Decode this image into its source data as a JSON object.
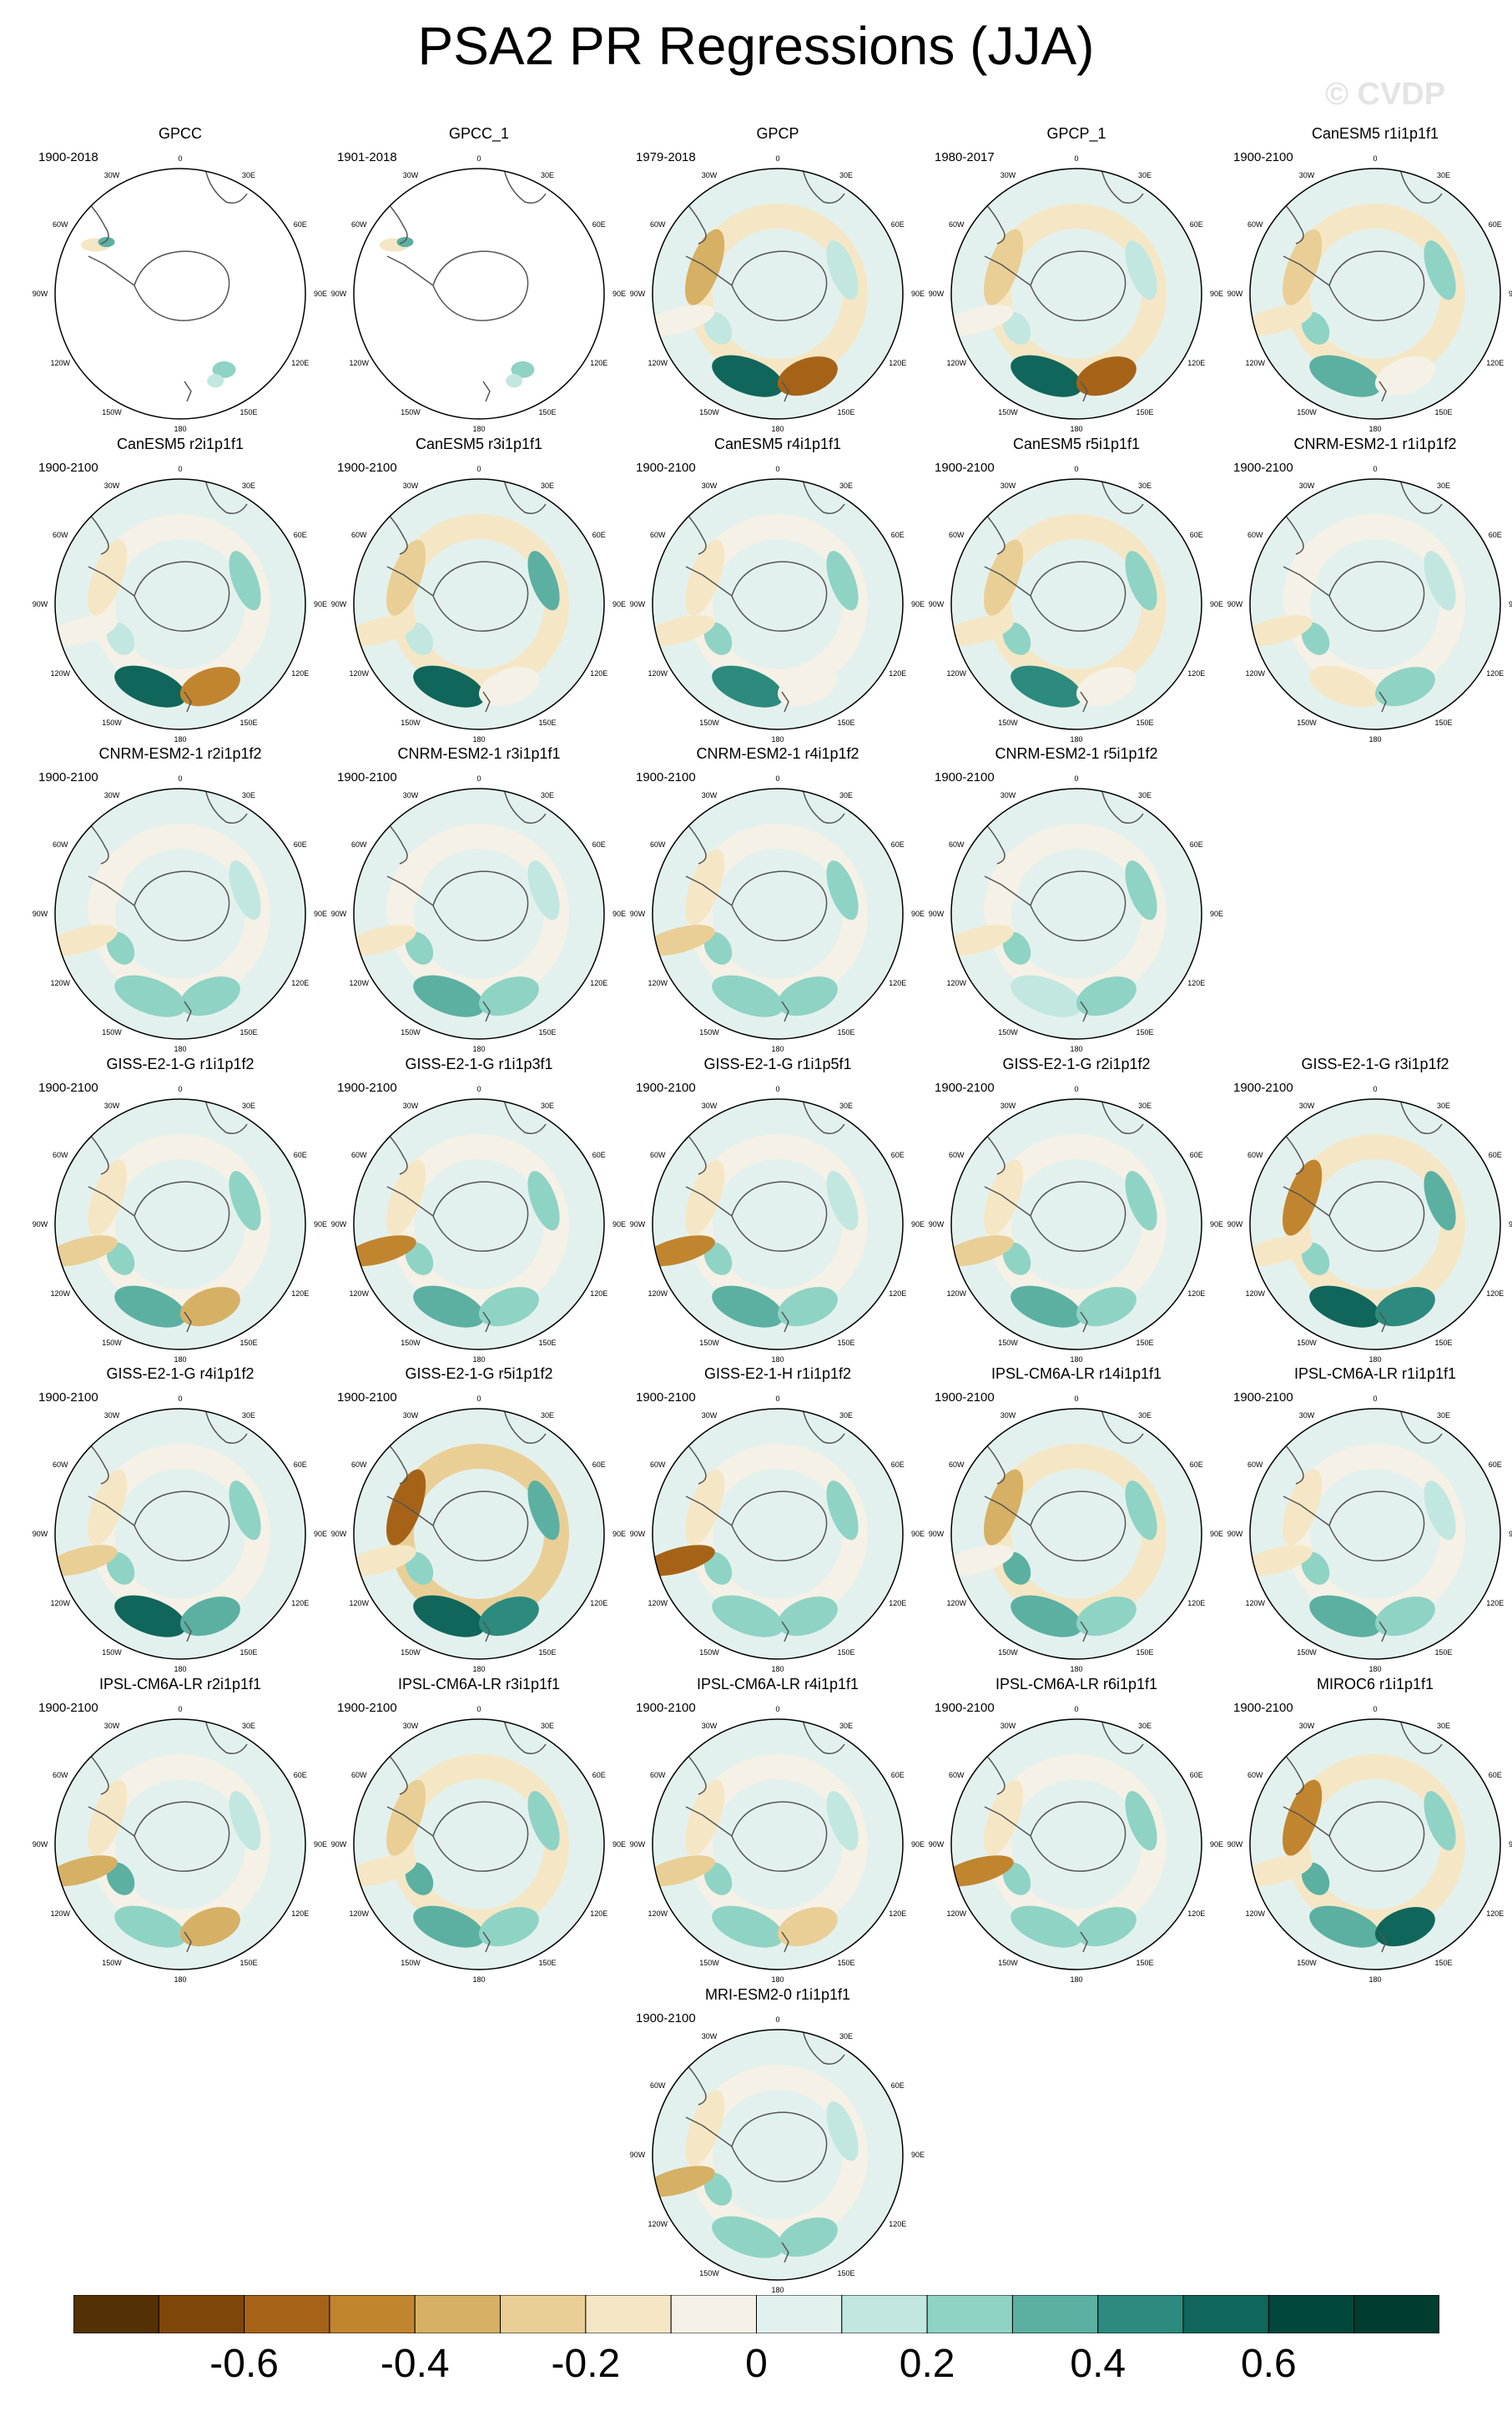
{
  "title": "PSA2 PR Regressions (JJA)",
  "watermark": "© CVDP",
  "longitude_labels": {
    "top": "0",
    "left_upper": "60W",
    "left_mid": "90W",
    "left_lower": "120W",
    "bottom_left": "150W",
    "bottom": "180",
    "bottom_right": "150E",
    "right_lower": "120E",
    "right_mid": "90E",
    "right_upper": "60E",
    "top_right": "30E",
    "top_left": "30W"
  },
  "panels": [
    {
      "title": "GPCC",
      "years": "1900-2018",
      "coverage": "land",
      "pattern": [
        0,
        0,
        0,
        0,
        0,
        0
      ]
    },
    {
      "title": "GPCC_1",
      "years": "1901-2018",
      "coverage": "land",
      "pattern": [
        0,
        0,
        0,
        0,
        0,
        0
      ]
    },
    {
      "title": "GPCP",
      "years": "1979-2018",
      "coverage": "full",
      "pattern": [
        -0.4,
        0.1,
        0.5,
        -0.1,
        0.1,
        -0.6
      ]
    },
    {
      "title": "GPCP_1",
      "years": "1980-2017",
      "coverage": "full",
      "pattern": [
        -0.3,
        0.1,
        0.5,
        -0.1,
        0.1,
        -0.6
      ]
    },
    {
      "title": "CanESM5 r1i1p1f1",
      "years": "1900-2100",
      "coverage": "full",
      "pattern": [
        -0.3,
        0.2,
        0.3,
        -0.2,
        0.2,
        -0.1
      ]
    },
    {
      "title": "CanESM5 r2i1p1f1",
      "years": "1900-2100",
      "coverage": "full",
      "pattern": [
        -0.2,
        0.1,
        0.5,
        -0.1,
        0.2,
        -0.5
      ]
    },
    {
      "title": "CanESM5 r3i1p1f1",
      "years": "1900-2100",
      "coverage": "full",
      "pattern": [
        -0.3,
        0.1,
        0.5,
        -0.2,
        0.3,
        -0.1
      ]
    },
    {
      "title": "CanESM5 r4i1p1f1",
      "years": "1900-2100",
      "coverage": "full",
      "pattern": [
        -0.2,
        0.2,
        0.4,
        -0.2,
        0.2,
        -0.1
      ]
    },
    {
      "title": "CanESM5 r5i1p1f1",
      "years": "1900-2100",
      "coverage": "full",
      "pattern": [
        -0.3,
        0.2,
        0.4,
        -0.2,
        0.2,
        -0.1
      ]
    },
    {
      "title": "CNRM-ESM2-1 r1i1p1f2",
      "years": "1900-2100",
      "coverage": "full",
      "pattern": [
        -0.1,
        0.2,
        -0.2,
        -0.2,
        0.1,
        0.2
      ]
    },
    {
      "title": "CNRM-ESM2-1 r2i1p1f2",
      "years": "1900-2100",
      "coverage": "full",
      "pattern": [
        -0.1,
        0.2,
        0.2,
        -0.2,
        0.1,
        0.2
      ]
    },
    {
      "title": "CNRM-ESM2-1 r3i1p1f1",
      "years": "1900-2100",
      "coverage": "full",
      "pattern": [
        -0.1,
        0.2,
        0.3,
        -0.2,
        0.1,
        0.2
      ]
    },
    {
      "title": "CNRM-ESM2-1 r4i1p1f2",
      "years": "1900-2100",
      "coverage": "full",
      "pattern": [
        -0.2,
        0.2,
        0.2,
        -0.3,
        0.2,
        0.2
      ]
    },
    {
      "title": "CNRM-ESM2-1 r5i1p1f2",
      "years": "1900-2100",
      "coverage": "full",
      "pattern": [
        -0.1,
        0.2,
        0.1,
        -0.2,
        0.2,
        0.2
      ]
    },
    {
      "title": "GISS-E2-1-G r1i1p1f2",
      "years": "1900-2100",
      "coverage": "full",
      "pattern": [
        -0.2,
        0.2,
        0.3,
        -0.3,
        0.2,
        -0.4
      ]
    },
    {
      "title": "GISS-E2-1-G r1i1p3f1",
      "years": "1900-2100",
      "coverage": "full",
      "pattern": [
        -0.2,
        0.2,
        0.3,
        -0.5,
        0.2,
        0.2
      ]
    },
    {
      "title": "GISS-E2-1-G r1i1p5f1",
      "years": "1900-2100",
      "coverage": "full",
      "pattern": [
        -0.2,
        0.2,
        0.3,
        -0.5,
        0.1,
        0.2
      ]
    },
    {
      "title": "GISS-E2-1-G r2i1p1f2",
      "years": "1900-2100",
      "coverage": "full",
      "pattern": [
        -0.2,
        0.2,
        0.3,
        -0.3,
        0.2,
        0.2
      ]
    },
    {
      "title": "GISS-E2-1-G r3i1p1f2",
      "years": "1900-2100",
      "coverage": "full",
      "pattern": [
        -0.5,
        0.2,
        0.5,
        -0.2,
        0.3,
        0.4
      ]
    },
    {
      "title": "GISS-E2-1-G r4i1p1f2",
      "years": "1900-2100",
      "coverage": "full",
      "pattern": [
        -0.2,
        0.2,
        0.6,
        -0.3,
        0.2,
        0.3
      ]
    },
    {
      "title": "GISS-E2-1-G r5i1p1f2",
      "years": "1900-2100",
      "coverage": "full",
      "pattern": [
        -0.6,
        0.2,
        0.5,
        -0.2,
        0.3,
        0.4
      ]
    },
    {
      "title": "GISS-E2-1-H r1i1p1f2",
      "years": "1900-2100",
      "coverage": "full",
      "pattern": [
        -0.2,
        0.2,
        0.2,
        -0.6,
        0.2,
        0.2
      ]
    },
    {
      "title": "IPSL-CM6A-LR r14i1p1f1",
      "years": "1900-2100",
      "coverage": "full",
      "pattern": [
        -0.4,
        0.3,
        0.3,
        -0.1,
        0.2,
        0.2
      ]
    },
    {
      "title": "IPSL-CM6A-LR r1i1p1f1",
      "years": "1900-2100",
      "coverage": "full",
      "pattern": [
        -0.2,
        0.2,
        0.3,
        -0.2,
        0.1,
        0.2
      ]
    },
    {
      "title": "IPSL-CM6A-LR r2i1p1f1",
      "years": "1900-2100",
      "coverage": "full",
      "pattern": [
        -0.2,
        0.3,
        0.2,
        -0.4,
        0.1,
        -0.4
      ]
    },
    {
      "title": "IPSL-CM6A-LR r3i1p1f1",
      "years": "1900-2100",
      "coverage": "full",
      "pattern": [
        -0.3,
        0.3,
        0.3,
        -0.2,
        0.2,
        0.2
      ]
    },
    {
      "title": "IPSL-CM6A-LR r4i1p1f1",
      "years": "1900-2100",
      "coverage": "full",
      "pattern": [
        -0.2,
        0.2,
        0.2,
        -0.3,
        0.1,
        -0.3
      ]
    },
    {
      "title": "IPSL-CM6A-LR r6i1p1f1",
      "years": "1900-2100",
      "coverage": "full",
      "pattern": [
        -0.2,
        0.2,
        0.2,
        -0.5,
        0.2,
        0.2
      ]
    },
    {
      "title": "MIROC6 r1i1p1f1",
      "years": "1900-2100",
      "coverage": "full",
      "pattern": [
        -0.5,
        0.3,
        0.3,
        -0.2,
        0.2,
        0.6
      ]
    },
    {
      "title": "MRI-ESM2-0 r1i1p1f1",
      "years": "1900-2100",
      "coverage": "full",
      "pattern": [
        -0.2,
        0.2,
        0.2,
        -0.4,
        0.1,
        0.2
      ]
    }
  ],
  "colorbar": {
    "colors": [
      "#543005",
      "#7f460a",
      "#a66318",
      "#c1852f",
      "#d6b064",
      "#e9cf96",
      "#f5e7c5",
      "#f5f1e6",
      "#e3f1ee",
      "#c2e7e0",
      "#8fd3c5",
      "#5bb0a2",
      "#2d8a7e",
      "#10665a",
      "#01473b",
      "#003c30"
    ],
    "tick_labels": [
      "-0.6",
      "-0.4",
      "-0.2",
      "0",
      "0.2",
      "0.4",
      "0.6"
    ]
  }
}
